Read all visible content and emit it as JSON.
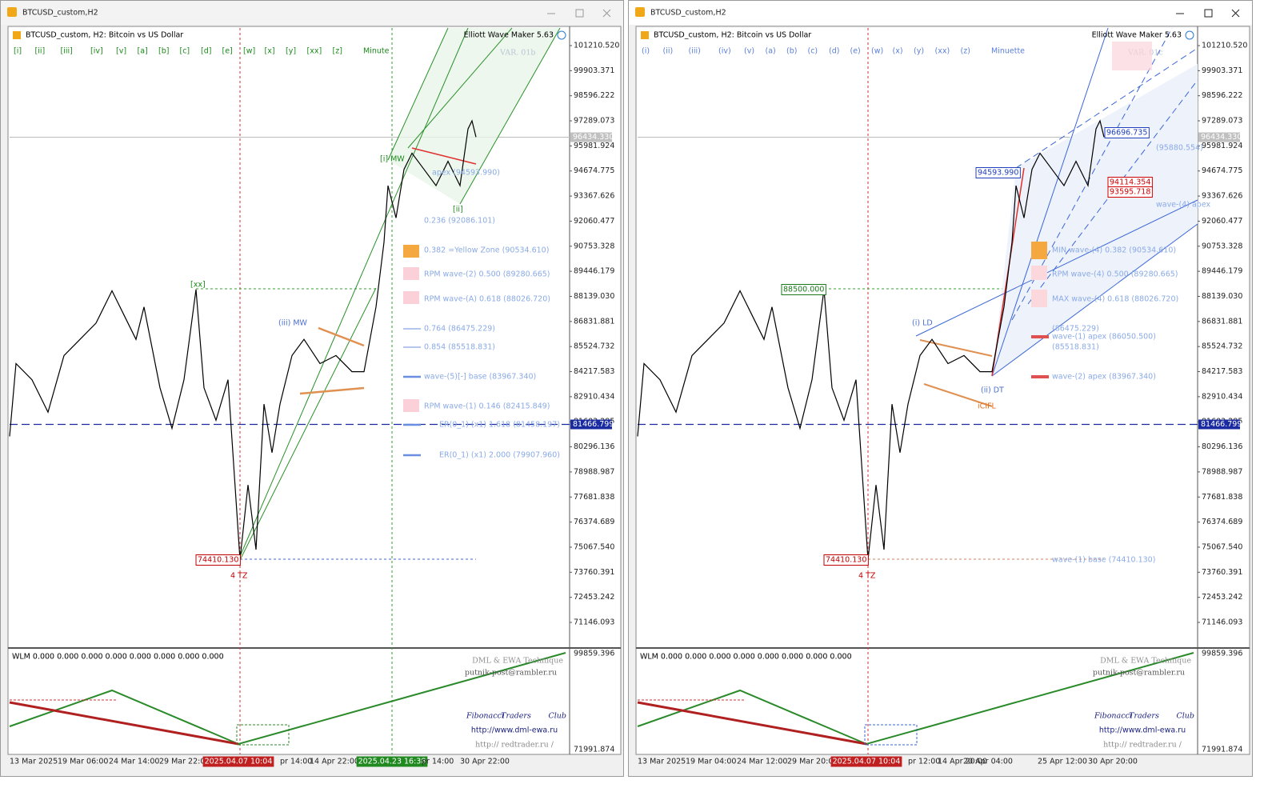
{
  "windows": [
    {
      "title": "BTCUSD_custom,H2",
      "header": "BTCUSD_custom, H2:  Bitcoin vs US Dollar",
      "tool": "Elliott Wave Maker 5.63",
      "buttons": [
        "[i]",
        "[ii]",
        "[iii]",
        "[iv]",
        "[v]",
        "[a]",
        "[b]",
        "[c]",
        "[d]",
        "[e]",
        "[w]",
        "[x]",
        "[y]",
        "[xx]",
        "[z]"
      ],
      "mode": "Minute",
      "variant": "VAR. 01b",
      "price_axis": [
        "101210.520",
        "99903.371",
        "98596.222",
        "97289.073",
        "95981.924",
        "94674.775",
        "93367.626",
        "92060.477",
        "90753.328",
        "89446.179",
        "88139.030",
        "86831.881",
        "85524.732",
        "84217.583",
        "82910.434",
        "81603.285",
        "80296.136",
        "78988.987",
        "77681.838",
        "76374.689",
        "75067.540",
        "73760.391",
        "72453.242",
        "71146.093"
      ],
      "last_price": "96434.330",
      "level_price": "81466.799",
      "indicator": {
        "label": "WLM 0.000 0.000 0.000 0.000 0.000 0.000 0.000 0.000",
        "top": "99859.396",
        "bottom": "71991.874"
      },
      "time_axis": [
        "13 Mar 2025",
        "19 Mar 06:00",
        "24 Mar 14:00",
        "29 Mar 22:00",
        "2025.04.07 10:04",
        "pr 14:00",
        "14 Apr 22:00",
        "2025.04.23 16:38",
        "pr 14:00",
        "30 Apr 22:00"
      ],
      "credits": [
        "DML & EWA Technique",
        "putnik-post@rambler.ru",
        "Fibonacci",
        "Traders",
        "Club",
        "http://www.dml-ewa.ru",
        "http:// redtrader.ru /"
      ],
      "annotations": [
        "apex (94593.990)",
        "0.236 (92086.101)",
        "0.382 =Yellow Zone (90534.610)",
        "RPM wave-(2) 0.500 (89280.665)",
        "RPM wave-(A) 0.618 (88026.720)",
        "0.764 (86475.229)",
        "0.854 (85518.831)",
        "wave-(5)[-] base (83967.340)",
        "RPM wave-(1) 0.146 (82415.849)",
        "ER(0_1) (x1) 1.618 (81458.197)",
        "ER(0_1) (x1) 2.000 (79907.960)",
        "74410.130",
        "4 TZ",
        "[xx]",
        "(iii) MW",
        "[i] MW",
        "[ii]"
      ],
      "price": [
        80840,
        84636,
        83792,
        82105,
        85057,
        85900,
        86744,
        88431,
        87588,
        85900,
        87588,
        83370,
        81261,
        83792,
        88500,
        83370,
        81683,
        83792,
        74410,
        78309,
        74935,
        82527,
        79996,
        82527,
        85057,
        85900,
        84636,
        85057,
        84214,
        84214,
        87588,
        90962,
        93914,
        92227,
        94758,
        95601,
        94758,
        93914,
        95180,
        93914,
        96866,
        97289,
        96445
      ]
    },
    {
      "title": "BTCUSD_custom,H2",
      "header": "BTCUSD_custom, H2:  Bitcoin vs US Dollar",
      "tool": "Elliott Wave Maker 5.63",
      "buttons": [
        "(i)",
        "(ii)",
        "(iii)",
        "(iv)",
        "(v)",
        "(a)",
        "(b)",
        "(c)",
        "(d)",
        "(e)",
        "(w)",
        "(x)",
        "(y)",
        "(xx)",
        "(z)"
      ],
      "mode": "Minuette",
      "variant": "VAR. 01c",
      "price_axis": [
        "101210.520",
        "99903.371",
        "98596.222",
        "97289.073",
        "95981.924",
        "94674.775",
        "93367.626",
        "92060.477",
        "90753.328",
        "89446.179",
        "88139.030",
        "86831.881",
        "85524.732",
        "84217.583",
        "82910.434",
        "81603.285",
        "80296.136",
        "78988.987",
        "77681.838",
        "76374.689",
        "75067.540",
        "73760.391",
        "72453.242",
        "71146.093"
      ],
      "last_price": "96434.330",
      "level_price": "81466.799",
      "indicator": {
        "label": "WLM 0.000 0.000 0.000 0.000 0.000 0.000 0.000 0.000",
        "top": "99859.396",
        "bottom": "71991.874"
      },
      "time_axis": [
        "13 Mar 2025",
        "19 Mar 04:00",
        "24 Mar 12:00",
        "29 Mar 20:00",
        "2025.04.07 10:04",
        "pr 12:00",
        "14 Apr 20:00",
        "20 Apr 04:00",
        "25 Apr 12:00",
        "30 Apr 20:00"
      ],
      "credits": [
        "DML & EWA Technique",
        "putnik-post@rambler.ru",
        "Fibonacci",
        "Traders",
        "Club",
        "http://www.dml-ewa.ru",
        "http:// redtrader.ru /"
      ],
      "annotations": [
        "88500.000",
        "94593.990",
        "96696.735",
        "94114.354",
        "93595.718",
        "(95880.554)",
        "wave-(4) apex",
        "MIN wave-(4) 0.382 (90534.610)",
        "RPM wave-(4) 0.500 (89280.665)",
        "MAX wave-(4) 0.618 (88026.720)",
        "(86475.229)",
        "wave-(1) apex (86050.500)",
        "(85518.831)",
        "wave-(2) apex (83967.340)",
        "wave-(1) base (74410.130)",
        "(i) LD",
        "(ii) DT",
        "iCIFL",
        "74410.130",
        "4 TZ"
      ],
      "price": [
        80840,
        84636,
        83792,
        82105,
        85057,
        85900,
        86744,
        88431,
        87588,
        85900,
        87588,
        83370,
        81261,
        83792,
        88500,
        83370,
        81683,
        83792,
        74410,
        78309,
        74935,
        82527,
        79996,
        82527,
        85057,
        85900,
        84636,
        85057,
        84214,
        84214,
        87588,
        90962,
        93914,
        92227,
        94758,
        95601,
        94758,
        93914,
        95180,
        93914,
        96866,
        97289,
        96445
      ]
    }
  ]
}
